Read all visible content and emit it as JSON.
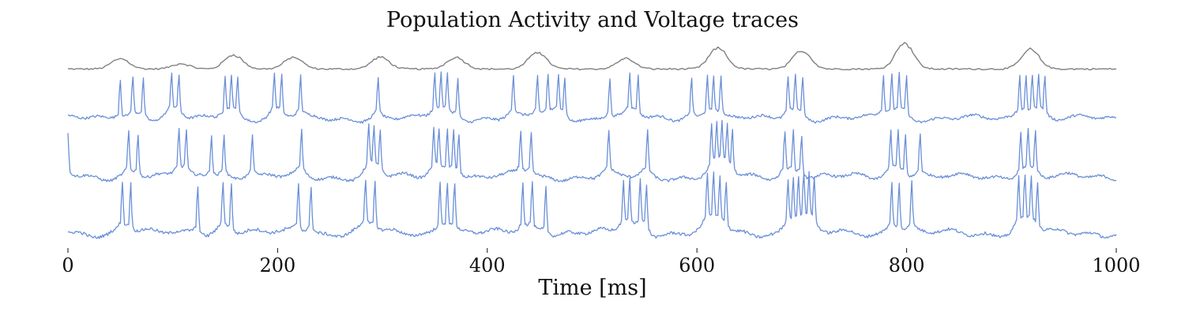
{
  "chart_data": {
    "type": "line",
    "title": "Population Activity and Voltage traces",
    "xlabel": "Time [ms]",
    "ylabel": "",
    "xlim": [
      0,
      1000
    ],
    "xticks": [
      0,
      200,
      400,
      600,
      800,
      1000
    ],
    "grid": false,
    "legend": "none",
    "series": [
      {
        "role": "population-activity",
        "color": "#808080",
        "baseline": 0.05,
        "bursts": [
          [
            50,
            0.4
          ],
          [
            108,
            0.2
          ],
          [
            158,
            0.55
          ],
          [
            215,
            0.45
          ],
          [
            298,
            0.45
          ],
          [
            370,
            0.45
          ],
          [
            448,
            0.65
          ],
          [
            532,
            0.4
          ],
          [
            620,
            0.8
          ],
          [
            700,
            0.7
          ],
          [
            798,
            1.0
          ],
          [
            918,
            0.75
          ]
        ],
        "noise": 0.06
      },
      {
        "role": "voltage-trace-1",
        "color": "#6a8fd8",
        "spikes": [
          50,
          62,
          72,
          99,
          106,
          150,
          156,
          162,
          197,
          204,
          222,
          296,
          350,
          356,
          362,
          372,
          425,
          448,
          458,
          468,
          474,
          517,
          536,
          544,
          595,
          610,
          616,
          623,
          687,
          694,
          701,
          778,
          786,
          793,
          800,
          908,
          914,
          920,
          926,
          932
        ]
      },
      {
        "role": "voltage-trace-2",
        "color": "#6a8fd8",
        "spikes": [
          0,
          58,
          67,
          106,
          113,
          137,
          149,
          176,
          223,
          287,
          292,
          298,
          349,
          354,
          362,
          368,
          373,
          432,
          442,
          516,
          553,
          614,
          619,
          624,
          629,
          634,
          684,
          692,
          700,
          785,
          792,
          799,
          813,
          909,
          916,
          923
        ]
      },
      {
        "role": "voltage-trace-3",
        "color": "#6a8fd8",
        "spikes": [
          52,
          60,
          124,
          148,
          156,
          220,
          232,
          284,
          293,
          355,
          362,
          369,
          434,
          443,
          456,
          530,
          536,
          546,
          552,
          610,
          616,
          622,
          628,
          687,
          692,
          697,
          702,
          707,
          712,
          786,
          793,
          805,
          907,
          913,
          919,
          925
        ]
      }
    ]
  }
}
